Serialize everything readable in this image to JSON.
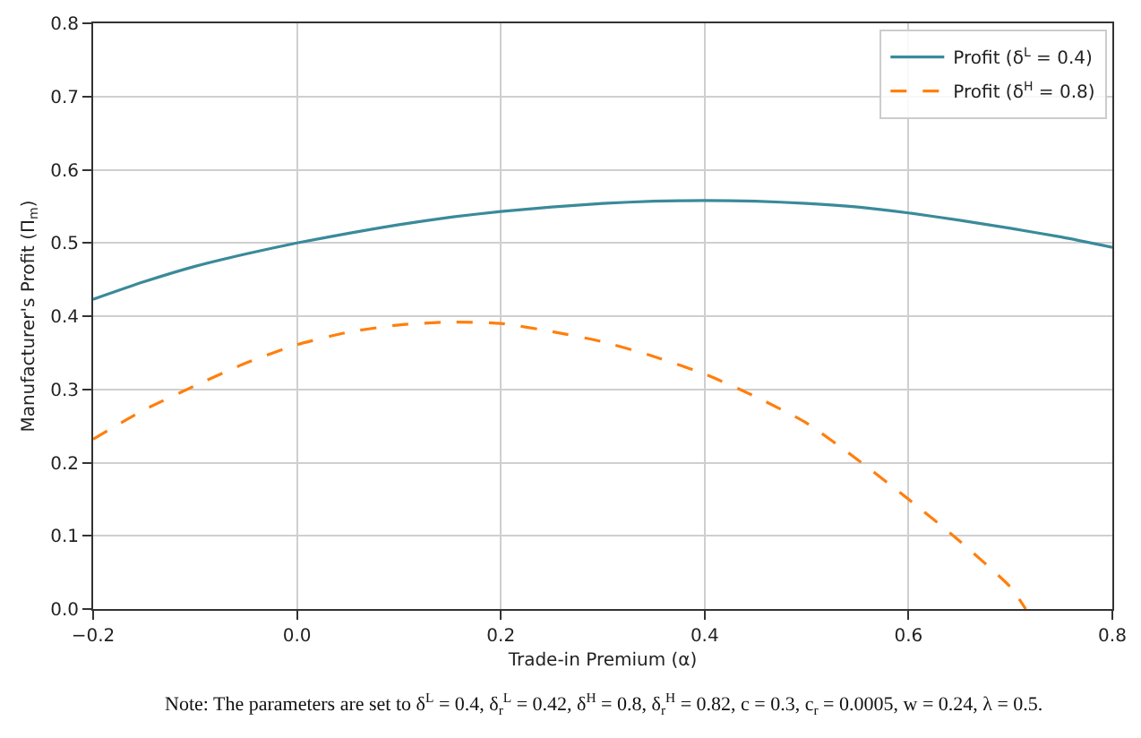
{
  "chart_data": {
    "type": "line",
    "xlabel": "Trade-in Premium (α)",
    "ylabel": "Manufacturer's Profit (Π$_{m}$)",
    "x": [
      -0.2,
      -0.15,
      -0.1,
      -0.05,
      0,
      0.05,
      0.1,
      0.15,
      0.2,
      0.25,
      0.3,
      0.35,
      0.4,
      0.45,
      0.5,
      0.55,
      0.6,
      0.65,
      0.7,
      0.75,
      0.8
    ],
    "series": [
      {
        "name": "Profit (δ$^{L}$ = 0.4)",
        "color": "#3a8a9a",
        "line_style": "solid",
        "values": [
          0.423,
          0.447,
          0.468,
          0.485,
          0.5,
          0.513,
          0.525,
          0.535,
          0.543,
          0.549,
          0.554,
          0.557,
          0.558,
          0.557,
          0.554,
          0.549,
          0.541,
          0.531,
          0.52,
          0.508,
          0.494
        ]
      },
      {
        "name": "Profit (δ$^{H}$ = 0.8)",
        "color": "#ff7f0e",
        "line_style": "dashed",
        "x": [
          -0.2,
          -0.15,
          -0.1,
          -0.05,
          0,
          0.05,
          0.1,
          0.15,
          0.2,
          0.25,
          0.3,
          0.35,
          0.4,
          0.45,
          0.5,
          0.55,
          0.6,
          0.65,
          0.7,
          0.715
        ],
        "values": [
          0.232,
          0.272,
          0.305,
          0.336,
          0.361,
          0.378,
          0.388,
          0.392,
          0.39,
          0.379,
          0.365,
          0.345,
          0.321,
          0.29,
          0.254,
          0.204,
          0.15,
          0.093,
          0.03,
          0.0
        ]
      }
    ],
    "xlim": [
      -0.2,
      0.8
    ],
    "xticks": [
      {
        "value": -0.2,
        "label": "−0.2"
      },
      "0.0",
      0.2,
      0.4,
      0.6,
      0.8
    ],
    "ylim": [
      0,
      0.8
    ],
    "yticks": [
      "0.0",
      0.1,
      0.2,
      0.3,
      0.4,
      0.5,
      0.6,
      0.7,
      0.8
    ],
    "grid": true,
    "legend": "top right",
    "annotations": [
      "Note: The parameters are set to δ$^{L}$ = 0.4, δ$_{r}$$^{L}$ = 0.42, δ$^{H}$ = 0.8, δ$_{r}$$^{H}$ = 0.82, c = 0.3, c$_{r}$ = 0.0005, w = 0.24, λ = 0.5."
    ]
  }
}
